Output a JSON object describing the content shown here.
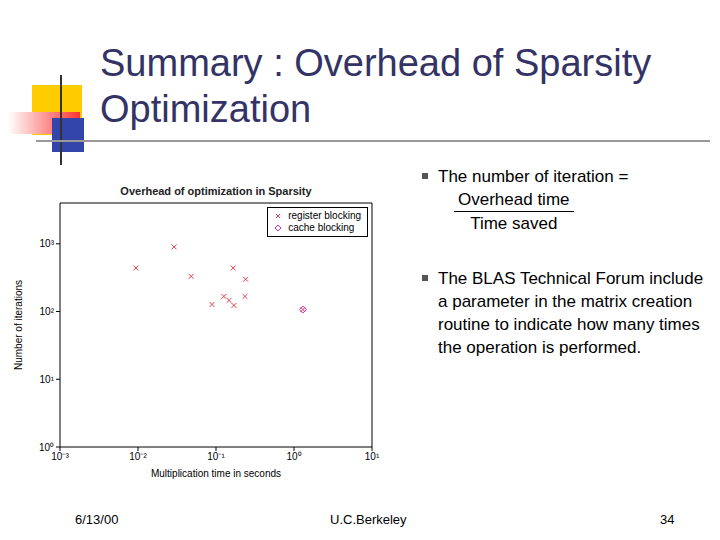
{
  "title": "Summary : Overhead of Sparsity Optimization",
  "bullets": [
    {
      "text": "The number of iteration =",
      "numerator": "Overhead time",
      "denominator": "Time saved"
    },
    {
      "text": "The BLAS Technical Forum include a parameter in the matrix creation routine to indicate how many times the operation is performed."
    }
  ],
  "footer": {
    "date": "6/13/00",
    "org": "U.C.Berkeley",
    "page": "34"
  },
  "chart_data": {
    "type": "scatter",
    "title": "Overhead of optimization in Sparsity",
    "x_label": "Multiplication time in seconds",
    "y_label": "Number of iterations",
    "log": true,
    "grid": false,
    "legend": "upper right",
    "xlim": [
      0.001,
      10
    ],
    "xticks": [
      {
        "value": 0.001,
        "label": "10⁻³"
      },
      {
        "value": 0.01,
        "label": "10⁻²"
      },
      {
        "value": 0.1,
        "label": "10⁻¹"
      },
      {
        "value": 1,
        "label": "10⁰"
      },
      {
        "value": 10,
        "label": "10¹"
      }
    ],
    "ylim": [
      1,
      4000
    ],
    "yticks": [
      {
        "value": 1,
        "label": "10⁰"
      },
      {
        "value": 10,
        "label": "10¹"
      },
      {
        "value": 100,
        "label": "10²"
      },
      {
        "value": 1000,
        "label": "10³"
      }
    ],
    "series": [
      {
        "name": "register blocking",
        "color": "#e0404a",
        "marker": "x",
        "x": [
          0.0094,
          0.029,
          0.048,
          0.166,
          0.24,
          0.089,
          0.126,
          0.147,
          0.17,
          0.235,
          1.3
        ],
        "values": [
          440,
          900,
          330,
          440,
          300,
          127,
          167,
          146,
          123,
          167,
          107
        ]
      },
      {
        "name": "cache blocking",
        "color": "#cc33cc",
        "marker": "diamond",
        "x": [
          1.3
        ],
        "values": [
          107
        ]
      }
    ]
  }
}
